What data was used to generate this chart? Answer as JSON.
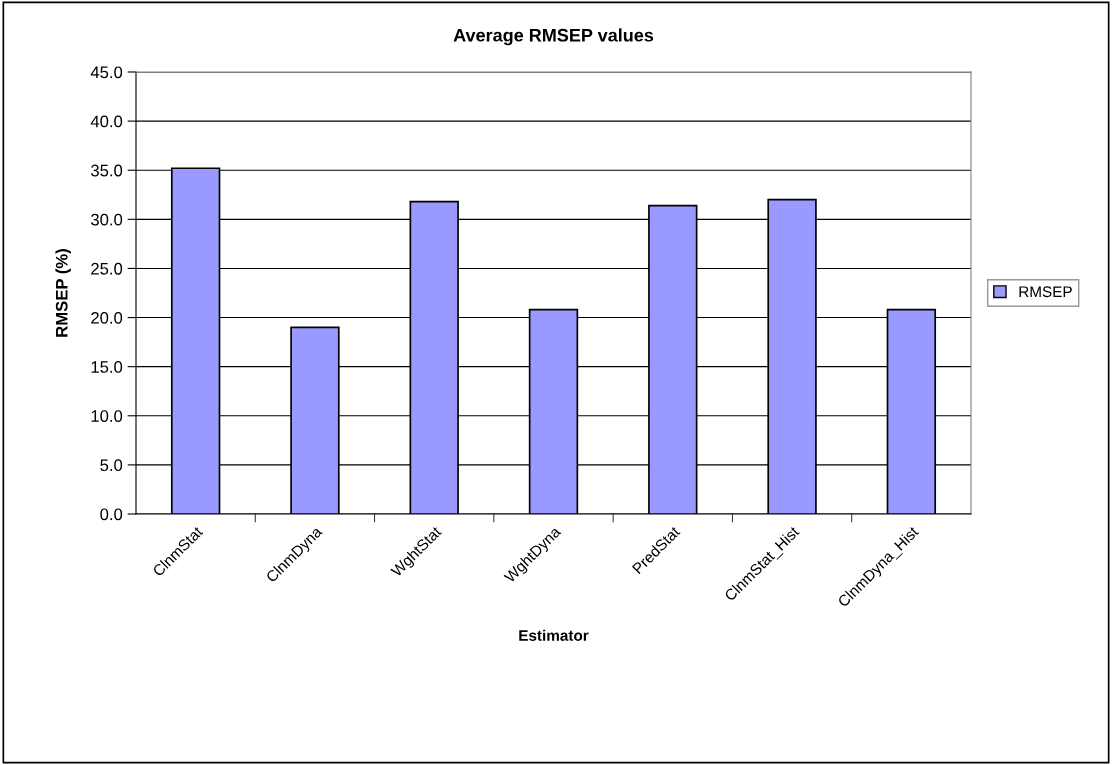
{
  "chart_data": {
    "type": "bar",
    "title": "Average RMSEP values",
    "xlabel": "Estimator",
    "ylabel": "RMSEP (%)",
    "categories": [
      "ClnmStat",
      "ClnmDyna",
      "WghtStat",
      "WghtDyna",
      "PredStat",
      "ClnmStat_Hist",
      "ClnmDyna_Hist"
    ],
    "series": [
      {
        "name": "RMSEP",
        "color": "#9999ff",
        "values": [
          35.2,
          19.0,
          31.8,
          20.8,
          31.4,
          32.0,
          20.8
        ]
      }
    ],
    "ylim": [
      0,
      45
    ],
    "yticks": [
      {
        "value": 0,
        "label": "0.0"
      },
      {
        "value": 5,
        "label": "5.0"
      },
      {
        "value": 10,
        "label": "10.0"
      },
      {
        "value": 15,
        "label": "15.0"
      },
      {
        "value": 20,
        "label": "20.0"
      },
      {
        "value": 25,
        "label": "25.0"
      },
      {
        "value": 30,
        "label": "30.0"
      },
      {
        "value": 35,
        "label": "35.0"
      },
      {
        "value": 40,
        "label": "40.0"
      },
      {
        "value": 45,
        "label": "45.0"
      }
    ],
    "grid": "y",
    "legend": "right"
  }
}
